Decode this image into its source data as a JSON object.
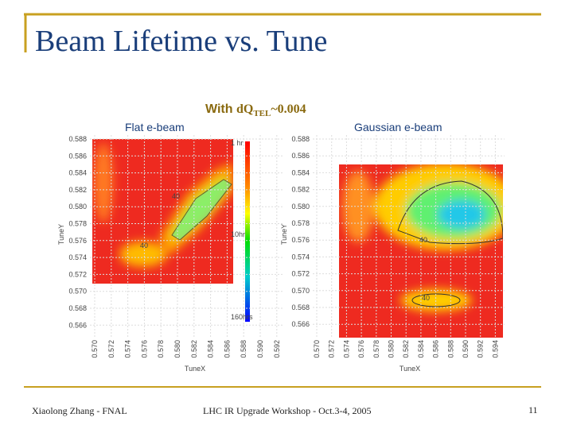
{
  "title": "Beam Lifetime vs. Tune",
  "subtitle": {
    "prefix": "With",
    "main": "dQ",
    "sub": "TEL",
    "suffix": "~0.004"
  },
  "panels": [
    {
      "label": "Flat e-beam",
      "xlabel": "TuneX",
      "ylabel": "TuneY",
      "yticks": [
        "0.588",
        "0.586",
        "0.584",
        "0.582",
        "0.580",
        "0.578",
        "0.576",
        "0.574",
        "0.572",
        "0.570",
        "0.568",
        "0.566"
      ],
      "xticks": [
        "0.570",
        "0.572",
        "0.574",
        "0.576",
        "0.578",
        "0.580",
        "0.582",
        "0.584",
        "0.586",
        "0.588",
        "0.590",
        "0.592"
      ],
      "contour_labels": [
        "40",
        "40"
      ],
      "colorbar_labels": [
        "1 hr",
        "10hr",
        "160hrs"
      ]
    },
    {
      "label": "Gaussian e-beam",
      "xlabel": "TuneX",
      "ylabel": "TuneY",
      "yticks": [
        "0.588",
        "0.586",
        "0.584",
        "0.582",
        "0.580",
        "0.578",
        "0.576",
        "0.574",
        "0.572",
        "0.570",
        "0.568",
        "0.566"
      ],
      "xticks": [
        "0.570",
        "0.572",
        "0.574",
        "0.576",
        "0.578",
        "0.580",
        "0.582",
        "0.584",
        "0.586",
        "0.588",
        "0.590",
        "0.592",
        "0.594"
      ],
      "contour_labels": [
        "40",
        "40"
      ]
    }
  ],
  "footer": {
    "left": "Xiaolong Zhang - FNAL",
    "center": "LHC IR Upgrade Workshop - Oct.3-4, 2005",
    "page": "11"
  }
}
